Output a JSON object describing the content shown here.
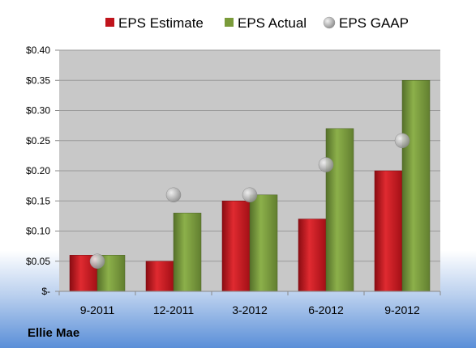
{
  "company": "Ellie Mae",
  "colors": {
    "estimate": "#c0141c",
    "actual": "#7a9b3a",
    "gaap": "#a9a9a9",
    "plot_background": "#c8c8c8",
    "background_top": "#ffffff",
    "background_bottom": "#5a8fd8"
  },
  "chart_data": {
    "type": "bar",
    "categories": [
      "9-2011",
      "12-2011",
      "3-2012",
      "6-2012",
      "9-2012"
    ],
    "series": [
      {
        "name": "EPS Estimate",
        "type": "bar",
        "values": [
          0.06,
          0.05,
          0.15,
          0.12,
          0.2
        ]
      },
      {
        "name": "EPS Actual",
        "type": "bar",
        "values": [
          0.06,
          0.13,
          0.16,
          0.27,
          0.35
        ]
      },
      {
        "name": "EPS GAAP",
        "type": "scatter",
        "values": [
          0.05,
          0.16,
          0.16,
          0.21,
          0.25
        ]
      }
    ],
    "yticks": [
      "$-",
      "$0.05",
      "$0.10",
      "$0.15",
      "$0.20",
      "$0.25",
      "$0.30",
      "$0.35",
      "$0.40"
    ],
    "ylim": [
      0,
      0.4
    ],
    "grid": true,
    "legend_position": "top"
  }
}
